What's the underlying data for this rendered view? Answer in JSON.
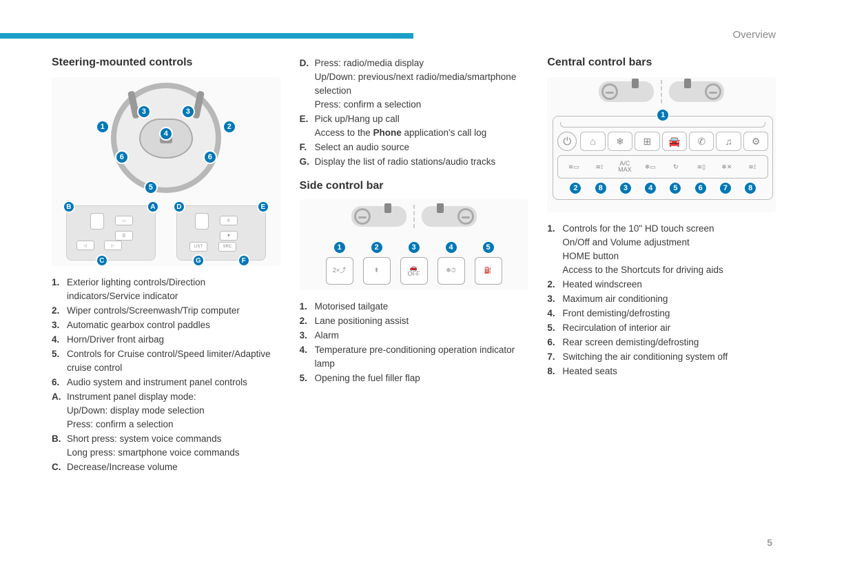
{
  "header": {
    "section": "Overview",
    "page_number": "5"
  },
  "colors": {
    "accent": "#1b9fc8",
    "callout": "#0077b6",
    "text": "#3a3a3a"
  },
  "col1": {
    "title": "Steering-mounted controls",
    "wheel_callouts": [
      "1",
      "2",
      "3",
      "4",
      "5",
      "6",
      "6"
    ],
    "pod_left_callouts": [
      "A",
      "B",
      "C"
    ],
    "pod_right_callouts": [
      "D",
      "E",
      "F",
      "G"
    ],
    "pod_right_labels": {
      "list": "LIST",
      "src": "SRC"
    },
    "list_num": [
      {
        "m": "1.",
        "t": "Exterior lighting controls/Direction indicators/Service indicator"
      },
      {
        "m": "2.",
        "t": "Wiper controls/Screenwash/Trip computer"
      },
      {
        "m": "3.",
        "t": "Automatic gearbox control paddles"
      },
      {
        "m": "4.",
        "t": "Horn/Driver front airbag"
      },
      {
        "m": "5.",
        "t": "Controls for Cruise control/Speed limiter/Adaptive cruise control"
      },
      {
        "m": "6.",
        "t": "Audio system and instrument panel controls"
      },
      {
        "m": "A.",
        "t": "Instrument panel display mode:\nUp/Down: display mode selection\nPress: confirm a selection"
      },
      {
        "m": "B.",
        "t": "Short press: system voice commands\nLong press: smartphone voice commands"
      },
      {
        "m": "C.",
        "t": "Decrease/Increase volume"
      }
    ]
  },
  "col2": {
    "cont_list": [
      {
        "m": "D.",
        "t": "Press: radio/media display\nUp/Down: previous/next radio/media/smartphone selection\nPress: confirm a selection"
      },
      {
        "m": "E.",
        "t_html": "Pick up/Hang up call\nAccess to the <b>Phone</b> application's call log"
      },
      {
        "m": "F.",
        "t": "Select an audio source"
      },
      {
        "m": "G.",
        "t": "Display the list of radio stations/audio tracks"
      }
    ],
    "side_title": "Side control bar",
    "side_icons": [
      {
        "n": "1",
        "glyph": "2×⤴",
        "name": "tailgate-icon"
      },
      {
        "n": "2",
        "glyph": "⇞",
        "name": "lane-assist-icon"
      },
      {
        "n": "3",
        "glyph": "🚗\nOFF",
        "name": "alarm-off-icon"
      },
      {
        "n": "4",
        "glyph": "❄⏱",
        "name": "preconditioning-icon"
      },
      {
        "n": "5",
        "glyph": "⛽",
        "name": "fuel-flap-icon"
      }
    ],
    "side_list": [
      {
        "m": "1.",
        "t": "Motorised tailgate"
      },
      {
        "m": "2.",
        "t": "Lane positioning assist"
      },
      {
        "m": "3.",
        "t": "Alarm"
      },
      {
        "m": "4.",
        "t": "Temperature pre-conditioning operation indicator lamp"
      },
      {
        "m": "5.",
        "t": "Opening the fuel filler flap"
      }
    ]
  },
  "col3": {
    "title": "Central control bars",
    "top_icons": [
      {
        "g": "⌂",
        "name": "home-icon"
      },
      {
        "g": "❄",
        "name": "climate-icon"
      },
      {
        "g": "⊞",
        "name": "apps-icon"
      },
      {
        "g": "🚘",
        "name": "vehicle-icon"
      },
      {
        "g": "✆",
        "name": "phone-icon"
      },
      {
        "g": "♫",
        "name": "media-icon"
      },
      {
        "g": "⚙",
        "name": "settings-icon"
      }
    ],
    "bottom_icons": [
      {
        "g": "≋▭",
        "name": "heated-windscreen-icon"
      },
      {
        "g": "≋⟟",
        "name": "heated-seat-left-icon"
      },
      {
        "g": "A/C\nMAX",
        "name": "ac-max-icon"
      },
      {
        "g": "❄▭",
        "name": "front-demist-icon"
      },
      {
        "g": "↻",
        "name": "recirc-icon"
      },
      {
        "g": "≋▯",
        "name": "rear-demist-icon"
      },
      {
        "g": "❄✕",
        "name": "ac-off-icon"
      },
      {
        "g": "≋⟟",
        "name": "heated-seat-right-icon"
      }
    ],
    "bottom_callouts": [
      "2",
      "8",
      "3",
      "4",
      "5",
      "6",
      "7",
      "8"
    ],
    "top_callout": "1",
    "list": [
      {
        "m": "1.",
        "t": "Controls for the 10\" HD touch screen\nOn/Off and Volume adjustment\nHOME button\nAccess to the Shortcuts for driving aids"
      },
      {
        "m": "2.",
        "t": "Heated windscreen"
      },
      {
        "m": "3.",
        "t": "Maximum air conditioning"
      },
      {
        "m": "4.",
        "t": "Front demisting/defrosting"
      },
      {
        "m": "5.",
        "t": "Recirculation of interior air"
      },
      {
        "m": "6.",
        "t": "Rear screen demisting/defrosting"
      },
      {
        "m": "7.",
        "t": "Switching the air conditioning system off"
      },
      {
        "m": "8.",
        "t": "Heated seats"
      }
    ]
  }
}
